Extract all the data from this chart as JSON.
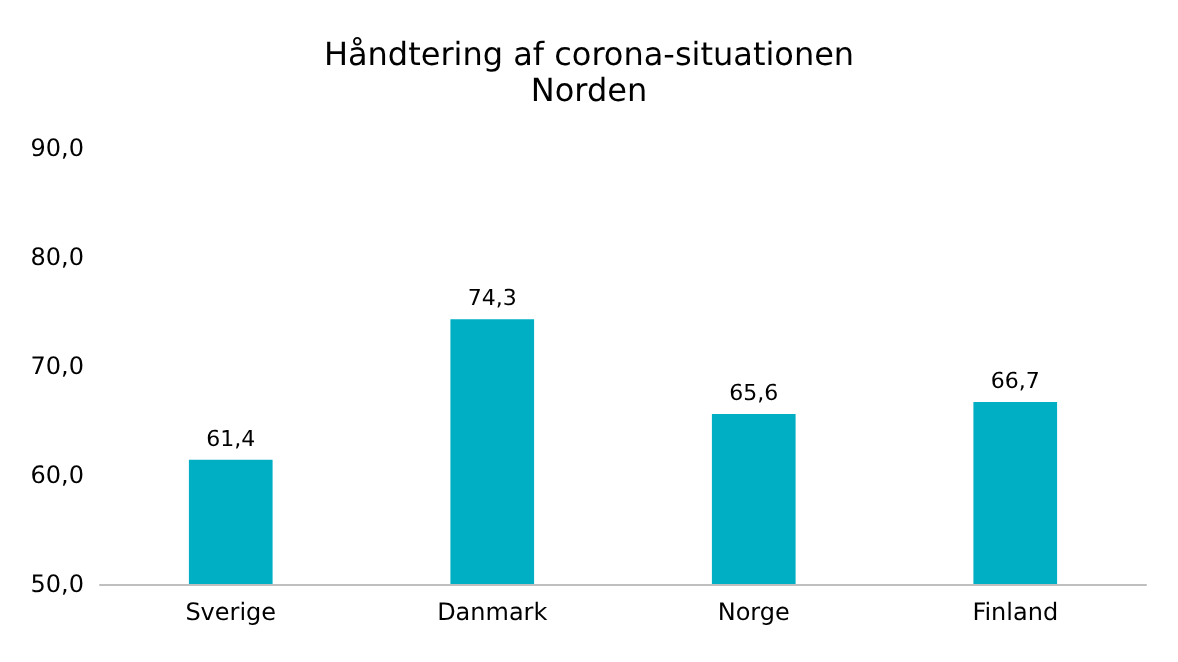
{
  "chart_data": {
    "type": "bar",
    "title": "Håndtering af corona-situationen",
    "subtitle": "Norden",
    "categories": [
      "Sverige",
      "Danmark",
      "Norge",
      "Finland"
    ],
    "values": [
      61.4,
      74.3,
      65.6,
      66.7
    ],
    "color": "#00afc3",
    "ylim": [
      50,
      90
    ],
    "yticks": [
      {
        "value": 50,
        "label": "50,0"
      },
      {
        "value": 60,
        "label": "60,0"
      },
      {
        "value": 70,
        "label": "70,0"
      },
      {
        "value": 80,
        "label": "80,0"
      },
      {
        "value": 90,
        "label": "90,0"
      }
    ],
    "value_labels": [
      "61,4",
      "74,3",
      "65,6",
      "66,7"
    ],
    "grid": false
  }
}
